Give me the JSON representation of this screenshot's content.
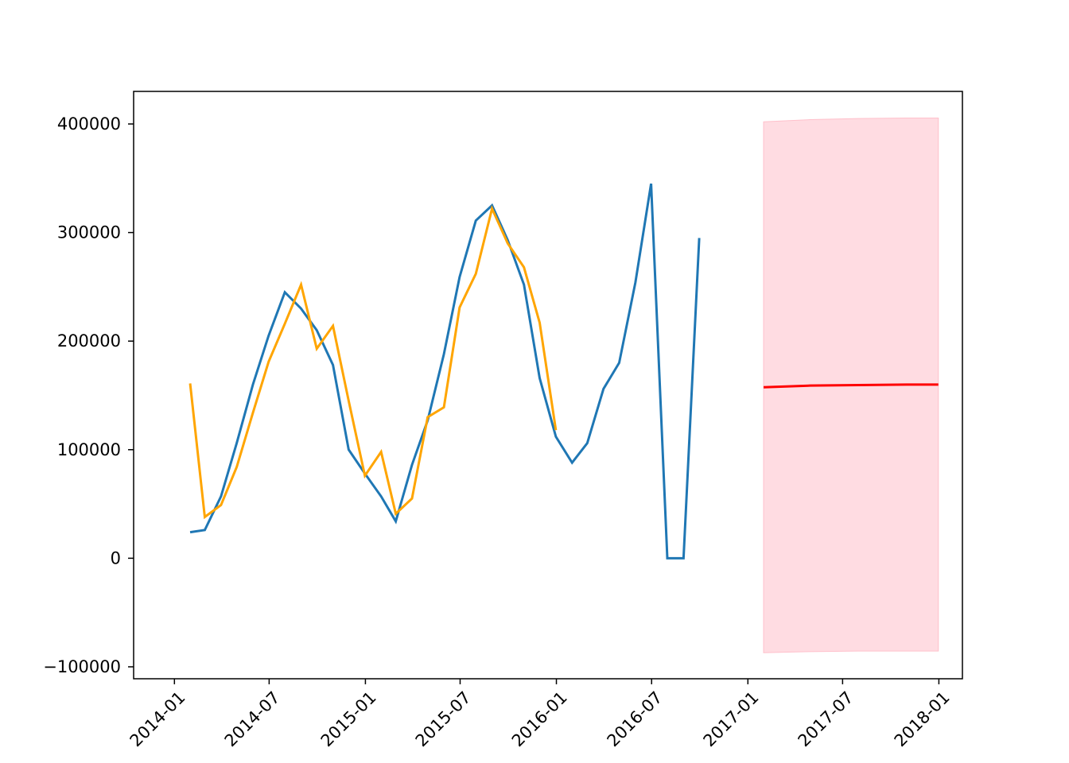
{
  "chart_data": {
    "type": "line",
    "title": "",
    "xlabel": "",
    "ylabel": "",
    "xlim": [
      "2013-10-15",
      "2018-02-15"
    ],
    "ylim": [
      -111000,
      430000
    ],
    "x_ticks": [
      "2014-01",
      "2014-07",
      "2015-01",
      "2015-07",
      "2016-01",
      "2016-07",
      "2017-01",
      "2017-07",
      "2018-01"
    ],
    "y_ticks": [
      400000,
      300000,
      200000,
      100000,
      0,
      -100000
    ],
    "y_tick_labels": [
      "400000",
      "300000",
      "200000",
      "100000",
      "0",
      "−100000"
    ],
    "grid": false,
    "legend": "none",
    "series": [
      {
        "color": "#1f77b4",
        "x": [
          "2014-01-31",
          "2014-02-28",
          "2014-03-31",
          "2014-04-30",
          "2014-05-31",
          "2014-06-30",
          "2014-07-31",
          "2014-08-31",
          "2014-09-30",
          "2014-10-31",
          "2014-11-30",
          "2014-12-31",
          "2015-01-31",
          "2015-02-28",
          "2015-03-31",
          "2015-04-30",
          "2015-05-31",
          "2015-06-30",
          "2015-07-31",
          "2015-08-31",
          "2015-09-30",
          "2015-10-31",
          "2015-11-30",
          "2015-12-31",
          "2016-01-31",
          "2016-02-29",
          "2016-03-31",
          "2016-04-30",
          "2016-05-31",
          "2016-06-30",
          "2016-07-31",
          "2016-08-31",
          "2016-09-30"
        ],
        "values": [
          24000,
          26000,
          57000,
          106000,
          160000,
          205000,
          245000,
          230000,
          210000,
          178000,
          100000,
          78000,
          57000,
          34000,
          86000,
          127000,
          188000,
          259000,
          311000,
          325000,
          293000,
          252000,
          166000,
          112000,
          88000,
          106000,
          156000,
          180000,
          254000,
          345000,
          0,
          0,
          295000
        ]
      },
      {
        "color": "#ffa500",
        "x": [
          "2014-01-31",
          "2014-02-28",
          "2014-03-31",
          "2014-04-30",
          "2014-05-31",
          "2014-06-30",
          "2014-07-31",
          "2014-08-31",
          "2014-09-30",
          "2014-10-31",
          "2014-11-30",
          "2014-12-31",
          "2015-01-31",
          "2015-02-28",
          "2015-03-31",
          "2015-04-30",
          "2015-05-31",
          "2015-06-30",
          "2015-07-31",
          "2015-08-31",
          "2015-09-30",
          "2015-10-31",
          "2015-11-30",
          "2015-12-31"
        ],
        "values": [
          161000,
          38000,
          49000,
          84000,
          134000,
          181000,
          216000,
          252000,
          193000,
          214000,
          145000,
          76000,
          98000,
          41000,
          55000,
          130000,
          139000,
          231000,
          262000,
          322000,
          290000,
          268000,
          217000,
          118000
        ]
      },
      {
        "color": "#ff0000",
        "x": [
          "2017-01-31",
          "2017-04-30",
          "2017-07-31",
          "2017-10-31",
          "2017-12-31"
        ],
        "values": [
          157500,
          159000,
          159500,
          160000,
          160000
        ],
        "band_upper": [
          402000,
          404000,
          405000,
          405500,
          405500
        ],
        "band_lower": [
          -87000,
          -86000,
          -85500,
          -85500,
          -85500
        ],
        "band_color": "#ffc0cb"
      }
    ]
  }
}
